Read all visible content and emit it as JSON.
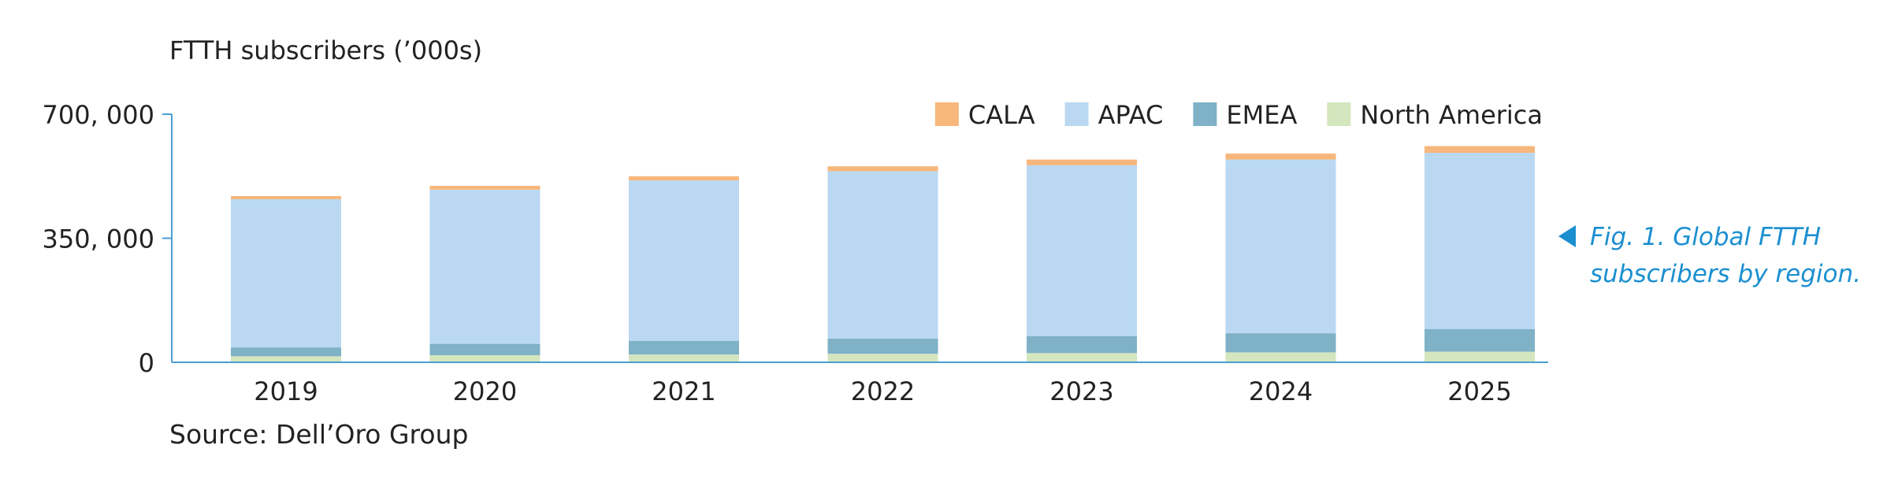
{
  "chart_data": {
    "type": "bar",
    "stacked": true,
    "ylabel": "FTTH subscribers (’000s)",
    "source": "Source: Dell’Oro Group",
    "categories": [
      "2019",
      "2020",
      "2021",
      "2022",
      "2023",
      "2024",
      "2025"
    ],
    "ylim": [
      0,
      700000
    ],
    "yticks": [
      0,
      350000,
      700000
    ],
    "ytick_labels": [
      "0",
      "350, 000",
      "700, 000"
    ],
    "legend_position": "top-right",
    "series": [
      {
        "name": "North America",
        "color": "#d4e6bd",
        "values": [
          17000,
          20000,
          22000,
          24000,
          26000,
          28000,
          30000
        ]
      },
      {
        "name": "EMEA",
        "color": "#7fb1c7",
        "values": [
          25000,
          32000,
          38000,
          43000,
          48000,
          54000,
          64000
        ]
      },
      {
        "name": "APAC",
        "color": "#bad8f2",
        "values": [
          418000,
          435000,
          453000,
          472000,
          482000,
          490000,
          497000
        ]
      },
      {
        "name": "CALA",
        "color": "#f7b77c",
        "values": [
          9000,
          11000,
          12000,
          14000,
          16000,
          17000,
          19000
        ]
      }
    ],
    "legend_order": [
      "CALA",
      "APAC",
      "EMEA",
      "North America"
    ]
  },
  "caption": {
    "line1": "Fig. 1. Global FTTH",
    "line2": "subscribers by region."
  },
  "colors": {
    "axis": "#4a9fd4",
    "caption": "#1b8fd0"
  }
}
